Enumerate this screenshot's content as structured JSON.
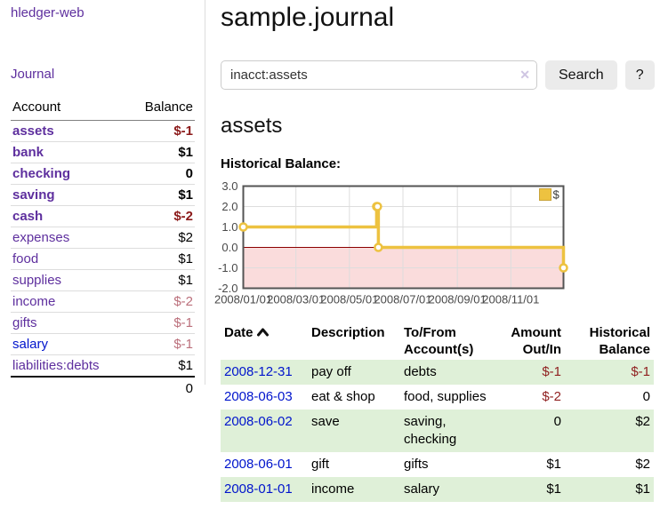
{
  "app_title": "hledger-web",
  "sidebar": {
    "journal_link": "Journal",
    "account_header": "Account",
    "balance_header": "Balance",
    "accounts": [
      {
        "name": "assets",
        "depth": 1,
        "bold": true,
        "balance": "$-1",
        "balance_class": "neg-strong"
      },
      {
        "name": "bank",
        "depth": 2,
        "bold": true,
        "balance": "$1",
        "balance_class": ""
      },
      {
        "name": "checking",
        "depth": 3,
        "bold": true,
        "balance": "0",
        "balance_class": ""
      },
      {
        "name": "saving",
        "depth": 3,
        "bold": true,
        "balance": "$1",
        "balance_class": ""
      },
      {
        "name": "cash",
        "depth": 2,
        "bold": true,
        "balance": "$-2",
        "balance_class": "neg-strong"
      },
      {
        "name": "expenses",
        "depth": 1,
        "bold": false,
        "balance": "$2",
        "balance_class": ""
      },
      {
        "name": "food",
        "depth": 2,
        "bold": false,
        "balance": "$1",
        "balance_class": ""
      },
      {
        "name": "supplies",
        "depth": 2,
        "bold": false,
        "balance": "$1",
        "balance_class": ""
      },
      {
        "name": "income",
        "depth": 1,
        "bold": false,
        "balance": "$-2",
        "balance_class": "neg-soft"
      },
      {
        "name": "gifts",
        "depth": 2,
        "bold": false,
        "balance": "$-1",
        "balance_class": "neg-soft"
      },
      {
        "name": "salary",
        "depth": 2,
        "bold": false,
        "balance": "$-1",
        "balance_class": "neg-soft",
        "unvisited": true
      },
      {
        "name": "liabilities:debts",
        "depth": 1,
        "bold": false,
        "balance": "$1",
        "balance_class": ""
      }
    ],
    "total": "0"
  },
  "main": {
    "title": "sample.journal",
    "search": {
      "query": "inacct:assets",
      "clear_glyph": "✕",
      "search_button": "Search",
      "help_button": "?"
    },
    "account_heading": "assets",
    "section_label": "Historical Balance:"
  },
  "chart_data": {
    "type": "line",
    "step": true,
    "title": "Historical Balance",
    "series": [
      {
        "name": "$",
        "color": "#edc240",
        "points": [
          [
            "2008-01-01",
            1
          ],
          [
            "2008-06-01",
            2
          ],
          [
            "2008-06-02",
            2
          ],
          [
            "2008-06-03",
            0
          ],
          [
            "2008-12-31",
            -1
          ]
        ]
      }
    ],
    "x_range": [
      "2008-01-01",
      "2008-12-31"
    ],
    "x_tick_dates": [
      "2008-01-01",
      "2008-03-01",
      "2008-05-01",
      "2008-07-01",
      "2008-09-01",
      "2008-11-01"
    ],
    "x_tick_labels": [
      "2008/01/01",
      "2008/03/01",
      "2008/05/01",
      "2008/07/01",
      "2008/09/01",
      "2008/11/01"
    ],
    "y_ticks": [
      3.0,
      2.0,
      1.0,
      0.0,
      -1.0,
      -2.0
    ],
    "y_tick_labels": [
      "3.0",
      "2.0",
      "1.0",
      "0.0",
      "-1.0",
      "-2.0"
    ],
    "ylim": [
      -2,
      3
    ],
    "legend_position": "top-right",
    "grid": true,
    "colors": {
      "negative_fill": "#fadcdc",
      "zero_line": "#8b0000",
      "grid": "#dddddd",
      "border": "#545454",
      "tick_text": "#494949",
      "legend_box_border": "#c9a43a"
    }
  },
  "transactions": {
    "headers": {
      "date": "Date",
      "sort_icon": "chevron-up",
      "description": "Description",
      "accounts": "To/From Account(s)",
      "amount": "Amount Out/In",
      "balance": "Historical Balance"
    },
    "rows": [
      {
        "date": "2008-12-31",
        "description": "pay off",
        "accounts": "debts",
        "amount": "$-1",
        "amount_negative": true,
        "balance": "$-1",
        "balance_negative": true
      },
      {
        "date": "2008-06-03",
        "description": "eat & shop",
        "accounts": "food, supplies",
        "amount": "$-2",
        "amount_negative": true,
        "balance": "0",
        "balance_negative": false
      },
      {
        "date": "2008-06-02",
        "description": "save",
        "accounts": "saving, checking",
        "amount": "0",
        "amount_negative": false,
        "balance": "$2",
        "balance_negative": false
      },
      {
        "date": "2008-06-01",
        "description": "gift",
        "accounts": "gifts",
        "amount": "$1",
        "amount_negative": false,
        "balance": "$2",
        "balance_negative": false
      },
      {
        "date": "2008-01-01",
        "description": "income",
        "accounts": "salary",
        "amount": "$1",
        "amount_negative": false,
        "balance": "$1",
        "balance_negative": false
      }
    ]
  }
}
